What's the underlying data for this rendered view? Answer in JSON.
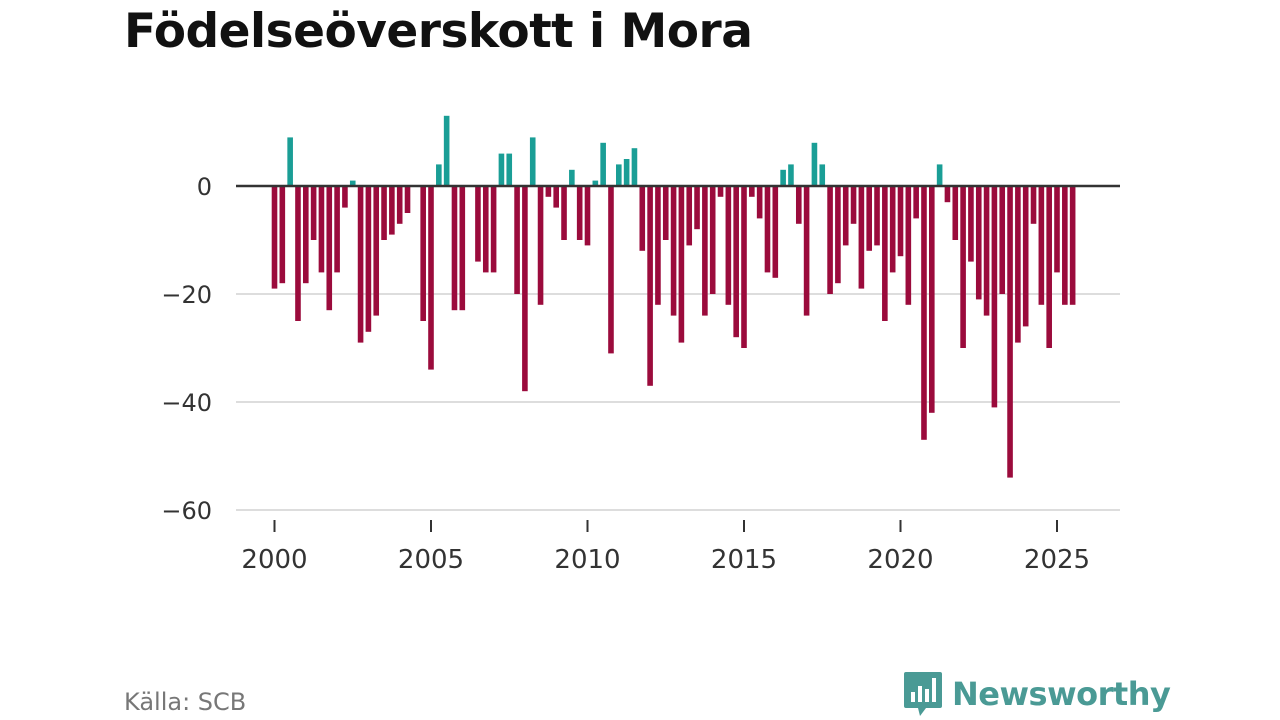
{
  "title": "Födelseöverskott i Mora",
  "source": "Källa: SCB",
  "brand": "Newsworthy",
  "colors": {
    "positive": "#1a9e96",
    "negative": "#9b0b3c",
    "zero_line": "#333333",
    "grid": "#dddddd",
    "brand": "#4a9a95"
  },
  "chart_data": {
    "type": "bar",
    "x_start": 2000.0,
    "x_step": 0.25,
    "values": [
      -19,
      -18,
      9,
      -25,
      -18,
      -10,
      -16,
      -23,
      -16,
      -4,
      1,
      -29,
      -27,
      -24,
      -10,
      -9,
      -7,
      -5,
      0,
      -25,
      -34,
      4,
      13,
      -23,
      -23,
      0,
      -14,
      -16,
      -16,
      6,
      6,
      -20,
      -38,
      9,
      -22,
      -2,
      -4,
      -10,
      3,
      -10,
      -11,
      1,
      8,
      -31,
      4,
      5,
      7,
      -12,
      -37,
      -22,
      -10,
      -24,
      -29,
      -11,
      -8,
      -24,
      -20,
      -2,
      -22,
      -28,
      -30,
      -2,
      -6,
      -16,
      -17,
      3,
      4,
      -7,
      -24,
      8,
      4,
      -20,
      -18,
      -11,
      -7,
      -19,
      -12,
      -11,
      -25,
      -16,
      -13,
      -22,
      -6,
      -47,
      -42,
      4,
      -3,
      -10,
      -30,
      -14,
      -21,
      -24,
      -41,
      -20,
      -54,
      -29,
      -26,
      -7,
      -22,
      -30,
      -16,
      -22,
      -22
    ],
    "xticks": [
      2000,
      2005,
      2010,
      2015,
      2020,
      2025
    ],
    "xtick_labels": [
      "2000",
      "2005",
      "2010",
      "2015",
      "2020",
      "2025"
    ],
    "yticks": [
      0,
      -20,
      -40,
      -60
    ],
    "ytick_labels": [
      "0",
      "−20",
      "−40",
      "−60"
    ],
    "ylim": [
      -60,
      13
    ],
    "xlim": [
      1999.6,
      2026.6
    ],
    "grid": true,
    "xlabel": "",
    "ylabel": ""
  }
}
